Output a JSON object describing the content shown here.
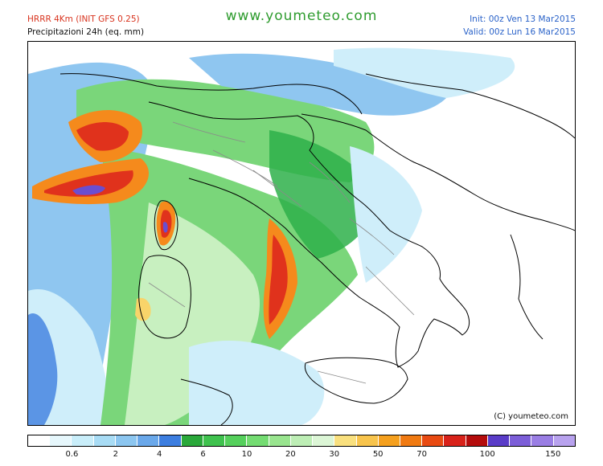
{
  "header": {
    "model_title": "HRRR 4Km (INIT GFS 0.25)",
    "product_title": "Precipitazioni 24h (eq. mm)",
    "site_url": "www.youmeteo.com",
    "init": "Init: 00z Ven 13 Mar2015",
    "valid": "Valid: 00z Lun 16 Mar2015"
  },
  "map": {
    "copyright": "(C) youmeteo.com",
    "colors": {
      "sea": "#ffffff",
      "light_blue": "#cfeefa",
      "blue": "#8fc6f0",
      "dark_blue": "#3d7ee0",
      "green_light": "#c8f0c0",
      "green": "#7ad67a",
      "green_dark": "#2eb04a",
      "yellow": "#f8d46a",
      "orange": "#f58a1c",
      "red": "#e0321c",
      "dark_red": "#a8100c",
      "purple": "#6a4ed0",
      "coast": "#000000",
      "borders": "#8a8a8a"
    }
  },
  "legend": {
    "colors": [
      "#ffffff",
      "#e6f7fc",
      "#c9eefa",
      "#a8dcf5",
      "#8cc6f0",
      "#6aa8ea",
      "#3d7ee0",
      "#2aa83a",
      "#3fc24e",
      "#55d05c",
      "#74dc72",
      "#99e58f",
      "#bdeeb5",
      "#dcf6d6",
      "#f9e07e",
      "#f8c44c",
      "#f5a01e",
      "#f07a12",
      "#e84a12",
      "#d8221a",
      "#b40c0c",
      "#5a3cc8",
      "#7c5ed8",
      "#9a7ee4",
      "#b8a2ee"
    ],
    "labels": [
      "0.6",
      "2",
      "4",
      "6",
      "10",
      "20",
      "30",
      "50",
      "70",
      "100",
      "150"
    ],
    "label_after_index": [
      1,
      3,
      5,
      7,
      9,
      11,
      13,
      15,
      17,
      20,
      23
    ]
  }
}
